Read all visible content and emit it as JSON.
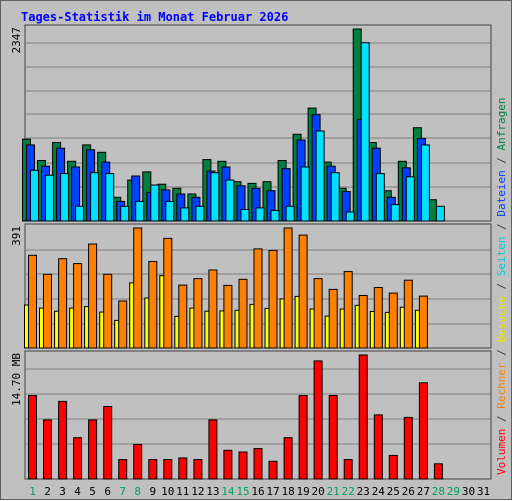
{
  "chart_data": {
    "type": "bar",
    "title": "Tages-Statistik im Monat Februar 2026",
    "categories": [
      "1",
      "2",
      "3",
      "4",
      "5",
      "6",
      "7",
      "8",
      "9",
      "10",
      "11",
      "12",
      "13",
      "14",
      "15",
      "16",
      "17",
      "18",
      "19",
      "20",
      "21",
      "22",
      "23",
      "24",
      "25",
      "26",
      "27",
      "28",
      "29",
      "30",
      "31"
    ],
    "weekend_days": [
      "1",
      "7",
      "8",
      "14",
      "15",
      "21",
      "22",
      "28",
      "29"
    ],
    "panels": [
      {
        "name": "requests-files-pages",
        "max_label": "2347",
        "ylim": [
          0,
          2347
        ],
        "series": [
          {
            "name": "Anfragen",
            "color": "#008040",
            "values": [
              1000,
              740,
              960,
              730,
              930,
              840,
              290,
              500,
              600,
              450,
              400,
              330,
              750,
              730,
              480,
              460,
              480,
              740,
              1060,
              1380,
              720,
              400,
              2347,
              960,
              370,
              730,
              1140,
              260,
              0,
              0,
              0
            ]
          },
          {
            "name": "Dateien",
            "color": "#0040ff",
            "values": [
              930,
              670,
              890,
              660,
              870,
              720,
              240,
              550,
              350,
              380,
              330,
              290,
              610,
              660,
              430,
              400,
              370,
              640,
              990,
              1300,
              670,
              360,
              1240,
              890,
              290,
              650,
              1010,
              0,
              0,
              0,
              0
            ]
          },
          {
            "name": "Seiten",
            "color": "#00e0ff",
            "values": [
              620,
              560,
              580,
              180,
              590,
              580,
              180,
              240,
              440,
              240,
              160,
              180,
              590,
              500,
              140,
              160,
              130,
              180,
              660,
              1100,
              590,
              110,
              2180,
              580,
              200,
              540,
              930,
              180,
              0,
              0,
              0
            ]
          }
        ]
      },
      {
        "name": "visits-hosts",
        "max_label": "391",
        "ylim": [
          0,
          391
        ],
        "series": [
          {
            "name": "Besuche",
            "color": "#ffff00",
            "values": [
              140,
              130,
              120,
              130,
              135,
              117,
              90,
              212,
              163,
              236,
              103,
              130,
              120,
              121,
              123,
              142,
              129,
              160,
              168,
              127,
              104,
              127,
              139,
              119,
              116,
              133,
              123,
              0,
              0,
              0,
              0
            ]
          },
          {
            "name": "Rechner",
            "color": "#ff8000",
            "values": [
              302,
              240,
              291,
              275,
              339,
              240,
              153,
              391,
              282,
              357,
              205,
              226,
              254,
              204,
              224,
              323,
              318,
              391,
              368,
              226,
              191,
              249,
              171,
              197,
              179,
              221,
              169,
              0,
              0,
              0,
              0
            ]
          }
        ]
      },
      {
        "name": "volume",
        "max_label": "14.70 MB",
        "ylim": [
          0,
          14.7
        ],
        "series": [
          {
            "name": "Volumen",
            "color": "#ff0000",
            "values": [
              9.9,
              7.0,
              9.2,
              4.9,
              7.0,
              8.6,
              2.3,
              4.1,
              2.3,
              2.3,
              2.5,
              2.3,
              7.0,
              3.4,
              3.2,
              3.6,
              2.1,
              4.9,
              9.9,
              14.0,
              9.9,
              2.3,
              14.7,
              7.6,
              2.8,
              7.3,
              11.4,
              1.8,
              0,
              0,
              0
            ]
          }
        ]
      }
    ],
    "right_legend": [
      {
        "text": "Volumen",
        "color": "#ff0000"
      },
      {
        "text": " / ",
        "color": "#404040"
      },
      {
        "text": "Rechner",
        "color": "#ff8000"
      },
      {
        "text": " / ",
        "color": "#404040"
      },
      {
        "text": "Besuche",
        "color": "#e8e800"
      },
      {
        "text": " / ",
        "color": "#404040"
      },
      {
        "text": "Seiten",
        "color": "#00c8e8"
      },
      {
        "text": " / ",
        "color": "#404040"
      },
      {
        "text": "Dateien",
        "color": "#0040ff"
      },
      {
        "text": " / ",
        "color": "#404040"
      },
      {
        "text": "Anfragen",
        "color": "#008040"
      }
    ],
    "colors": {
      "title": "#0000ff",
      "weekday": "#000000",
      "weekend": "#00a060",
      "background": "#c0c0c0",
      "grid": "#808080"
    }
  }
}
